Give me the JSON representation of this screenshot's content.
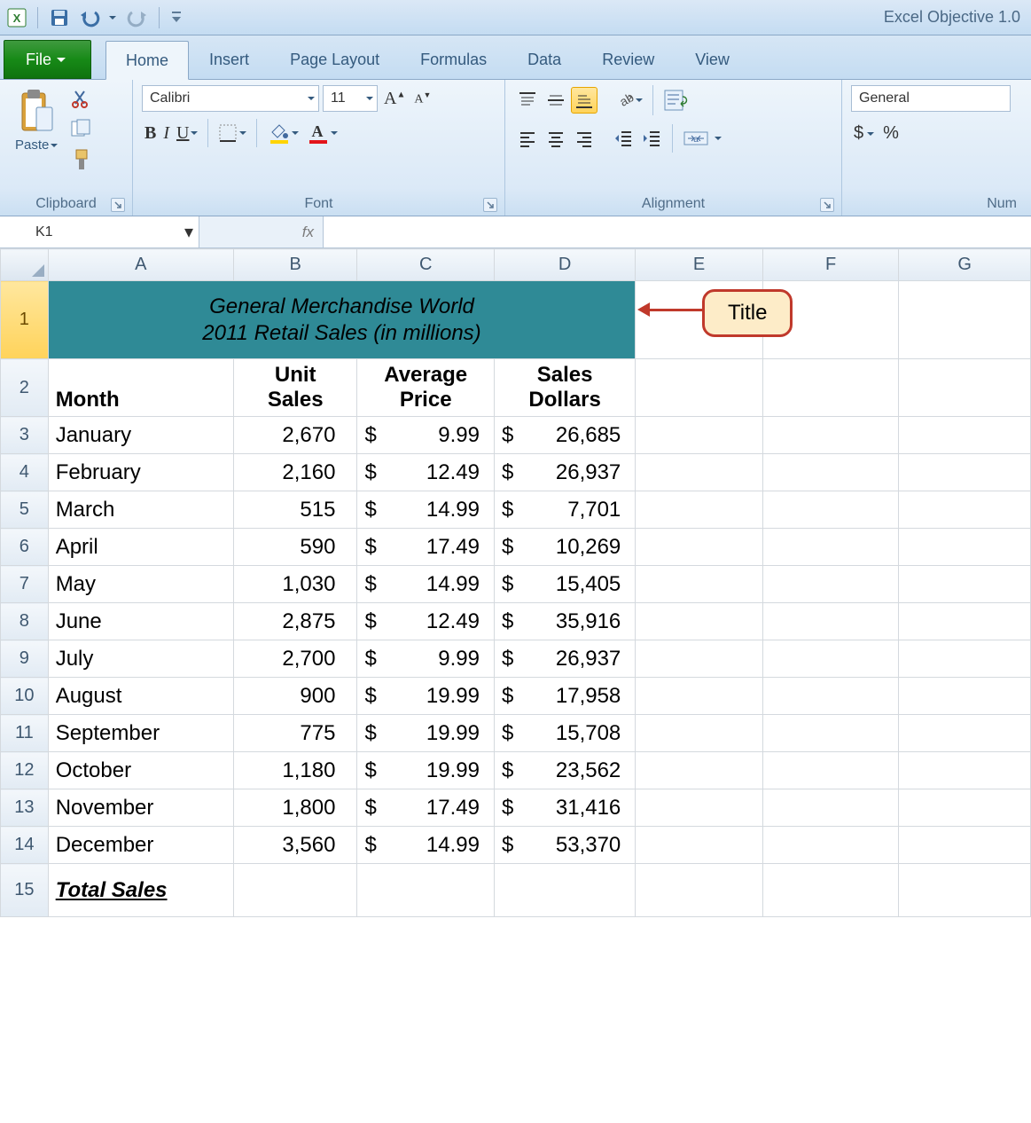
{
  "app": {
    "title": "Excel Objective 1.0"
  },
  "qat": {
    "items": [
      "excel-icon",
      "save-icon",
      "undo-icon",
      "redo-icon"
    ]
  },
  "tabs": {
    "file": "File",
    "list": [
      "Home",
      "Insert",
      "Page Layout",
      "Formulas",
      "Data",
      "Review",
      "View"
    ],
    "active": "Home"
  },
  "ribbon": {
    "clipboard": {
      "label": "Clipboard",
      "paste": "Paste"
    },
    "font": {
      "label": "Font",
      "font_name": "Calibri",
      "font_size": "11",
      "bold": "B",
      "italic": "I",
      "underline": "U"
    },
    "alignment": {
      "label": "Alignment"
    },
    "number": {
      "label": "Num",
      "format": "General",
      "currency": "$",
      "percent": "%"
    }
  },
  "formula_bar": {
    "name_box": "K1",
    "fx": "fx"
  },
  "sheet": {
    "columns": [
      "A",
      "B",
      "C",
      "D",
      "E",
      "F",
      "G"
    ],
    "row_numbers": [
      1,
      2,
      3,
      4,
      5,
      6,
      7,
      8,
      9,
      10,
      11,
      12,
      13,
      14,
      15
    ],
    "title_line1": "General Merchandise World",
    "title_line2": "2011 Retail Sales (in millions)",
    "headers": {
      "month": "Month",
      "unit_sales_l1": "Unit",
      "unit_sales_l2": "Sales",
      "avg_price_l1": "Average",
      "avg_price_l2": "Price",
      "sales_dollars_l1": "Sales",
      "sales_dollars_l2": "Dollars"
    },
    "data": [
      {
        "month": "January",
        "units": "2,670",
        "price": "9.99",
        "sales": "26,685"
      },
      {
        "month": "February",
        "units": "2,160",
        "price": "12.49",
        "sales": "26,937"
      },
      {
        "month": "March",
        "units": "515",
        "price": "14.99",
        "sales": "7,701"
      },
      {
        "month": "April",
        "units": "590",
        "price": "17.49",
        "sales": "10,269"
      },
      {
        "month": "May",
        "units": "1,030",
        "price": "14.99",
        "sales": "15,405"
      },
      {
        "month": "June",
        "units": "2,875",
        "price": "12.49",
        "sales": "35,916"
      },
      {
        "month": "July",
        "units": "2,700",
        "price": "9.99",
        "sales": "26,937"
      },
      {
        "month": "August",
        "units": "900",
        "price": "19.99",
        "sales": "17,958"
      },
      {
        "month": "September",
        "units": "775",
        "price": "19.99",
        "sales": "15,708"
      },
      {
        "month": "October",
        "units": "1,180",
        "price": "19.99",
        "sales": "23,562"
      },
      {
        "month": "November",
        "units": "1,800",
        "price": "17.49",
        "sales": "31,416"
      },
      {
        "month": "December",
        "units": "3,560",
        "price": "14.99",
        "sales": "53,370"
      }
    ],
    "total_label": "Total Sales"
  },
  "callout": {
    "label": "Title"
  },
  "colors": {
    "title_bg": "#2f8a96",
    "callout_border": "#c0392b",
    "callout_bg": "#fdecc8",
    "ribbon_bg_top": "#eef5fb",
    "selected_row_hdr": "#ffd35a"
  }
}
